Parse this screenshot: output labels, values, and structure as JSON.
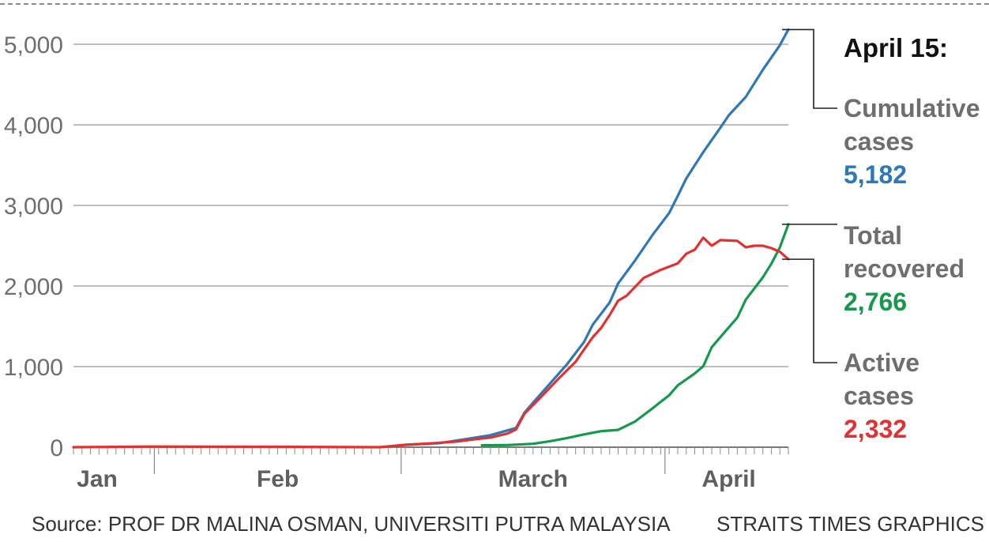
{
  "chart_data": {
    "type": "line",
    "x_unit": "date (2020)",
    "x_range": [
      "2020-01-22",
      "2020-04-15"
    ],
    "ylim": [
      0,
      5000
    ],
    "yticks": [
      0,
      1000,
      2000,
      3000,
      4000,
      5000
    ],
    "ytick_labels": [
      "0",
      "1,000",
      "2,000",
      "3,000",
      "4,000",
      "5,000"
    ],
    "months": [
      {
        "label": "Jan",
        "start": "2020-01-22",
        "end": "2020-01-31"
      },
      {
        "label": "Feb",
        "start": "2020-02-01",
        "end": "2020-02-29"
      },
      {
        "label": "March",
        "start": "2020-03-01",
        "end": "2020-03-31"
      },
      {
        "label": "April",
        "start": "2020-04-01",
        "end": "2020-04-15"
      }
    ],
    "grid": true,
    "annotation_date": "April 15:",
    "series": [
      {
        "key": "cumulative",
        "label_lines": [
          "Cumulative",
          "cases"
        ],
        "final_value": "5,182",
        "color": "#2f78b7",
        "points": [
          [
            "2020-03-01",
            29
          ],
          [
            "2020-03-05",
            50
          ],
          [
            "2020-03-08",
            99
          ],
          [
            "2020-03-11",
            149
          ],
          [
            "2020-03-14",
            238
          ],
          [
            "2020-03-15",
            428
          ],
          [
            "2020-03-16",
            553
          ],
          [
            "2020-03-18",
            790
          ],
          [
            "2020-03-20",
            1030
          ],
          [
            "2020-03-22",
            1306
          ],
          [
            "2020-03-23",
            1518
          ],
          [
            "2020-03-25",
            1796
          ],
          [
            "2020-03-26",
            2031
          ],
          [
            "2020-03-28",
            2320
          ],
          [
            "2020-03-30",
            2626
          ],
          [
            "2020-04-01",
            2908
          ],
          [
            "2020-04-02",
            3116
          ],
          [
            "2020-04-03",
            3333
          ],
          [
            "2020-04-05",
            3662
          ],
          [
            "2020-04-07",
            3963
          ],
          [
            "2020-04-08",
            4119
          ],
          [
            "2020-04-10",
            4346
          ],
          [
            "2020-04-12",
            4683
          ],
          [
            "2020-04-14",
            4987
          ],
          [
            "2020-04-15",
            5182
          ]
        ]
      },
      {
        "key": "recovered",
        "label_lines": [
          "Total",
          "recovered"
        ],
        "final_value": "2,766",
        "color": "#16994a",
        "points": [
          [
            "2020-03-10",
            24
          ],
          [
            "2020-03-13",
            26
          ],
          [
            "2020-03-16",
            42
          ],
          [
            "2020-03-18",
            75
          ],
          [
            "2020-03-20",
            114
          ],
          [
            "2020-03-22",
            159
          ],
          [
            "2020-03-24",
            199
          ],
          [
            "2020-03-26",
            215
          ],
          [
            "2020-03-28",
            320
          ],
          [
            "2020-03-30",
            479
          ],
          [
            "2020-04-01",
            645
          ],
          [
            "2020-04-02",
            767
          ],
          [
            "2020-04-04",
            915
          ],
          [
            "2020-04-05",
            1005
          ],
          [
            "2020-04-06",
            1241
          ],
          [
            "2020-04-08",
            1487
          ],
          [
            "2020-04-09",
            1608
          ],
          [
            "2020-04-10",
            1830
          ],
          [
            "2020-04-12",
            2108
          ],
          [
            "2020-04-13",
            2276
          ],
          [
            "2020-04-14",
            2478
          ],
          [
            "2020-04-15",
            2766
          ]
        ]
      },
      {
        "key": "active",
        "label_lines": [
          "Active",
          "cases"
        ],
        "final_value": "2,332",
        "color": "#e03232",
        "points": [
          [
            "2020-01-22",
            0
          ],
          [
            "2020-01-31",
            8
          ],
          [
            "2020-02-15",
            5
          ],
          [
            "2020-02-27",
            0
          ],
          [
            "2020-03-01",
            29
          ],
          [
            "2020-03-04",
            47
          ],
          [
            "2020-03-07",
            70
          ],
          [
            "2020-03-09",
            96
          ],
          [
            "2020-03-11",
            120
          ],
          [
            "2020-03-13",
            170
          ],
          [
            "2020-03-14",
            220
          ],
          [
            "2020-03-15",
            417
          ],
          [
            "2020-03-17",
            630
          ],
          [
            "2020-03-19",
            850
          ],
          [
            "2020-03-21",
            1060
          ],
          [
            "2020-03-22",
            1213
          ],
          [
            "2020-03-23",
            1363
          ],
          [
            "2020-03-24",
            1480
          ],
          [
            "2020-03-25",
            1640
          ],
          [
            "2020-03-26",
            1818
          ],
          [
            "2020-03-27",
            1880
          ],
          [
            "2020-03-29",
            2100
          ],
          [
            "2020-03-31",
            2200
          ],
          [
            "2020-04-02",
            2280
          ],
          [
            "2020-04-03",
            2400
          ],
          [
            "2020-04-04",
            2450
          ],
          [
            "2020-04-05",
            2600
          ],
          [
            "2020-04-06",
            2500
          ],
          [
            "2020-04-07",
            2570
          ],
          [
            "2020-04-09",
            2560
          ],
          [
            "2020-04-10",
            2480
          ],
          [
            "2020-04-11",
            2500
          ],
          [
            "2020-04-12",
            2500
          ],
          [
            "2020-04-13",
            2470
          ],
          [
            "2020-04-14",
            2425
          ],
          [
            "2020-04-15",
            2332
          ]
        ]
      }
    ]
  },
  "source": "Source: PROF DR MALINA OSMAN, UNIVERSITI PUTRA MALAYSIA",
  "credit": "STRAITS TIMES GRAPHICS"
}
